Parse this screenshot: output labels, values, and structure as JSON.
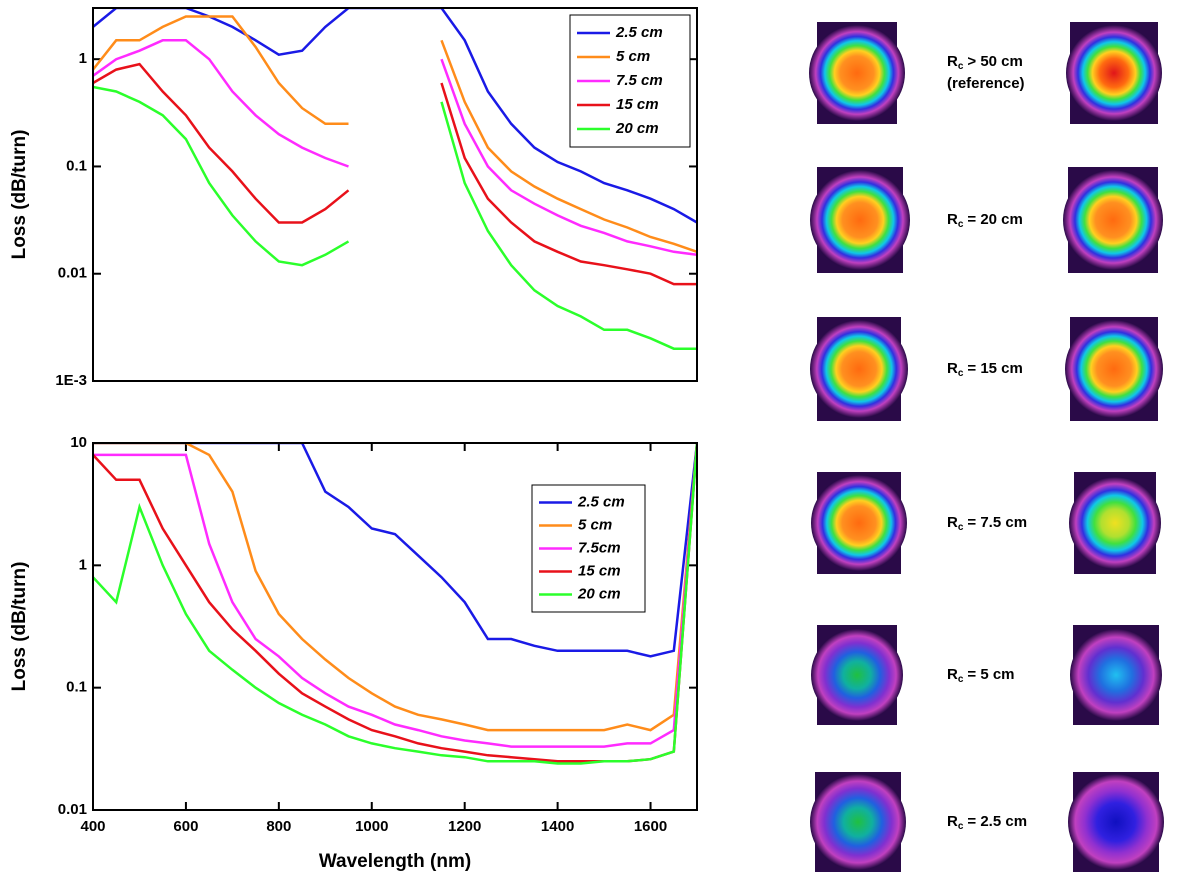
{
  "chart_data": [
    {
      "type": "line",
      "ylabel": "Loss (dB/turn)",
      "yscale": "log",
      "legend": "upper right",
      "x": [
        400,
        450,
        500,
        550,
        600,
        650,
        700,
        750,
        800,
        850,
        900,
        950,
        1000,
        1050,
        1100,
        1150,
        1200,
        1250,
        1300,
        1350,
        1400,
        1450,
        1500,
        1550,
        1600,
        1650,
        1700
      ],
      "xlim": [
        400,
        1700
      ],
      "ylim": [
        0.001,
        3
      ],
      "yticks": [
        {
          "value": 0.001,
          "label": "1E-3"
        },
        0.01,
        0.1,
        1
      ],
      "series": [
        {
          "name": "2.5 cm",
          "color": "#1a1ae6",
          "values": [
            2,
            3,
            3,
            3,
            3,
            2.5,
            2,
            1.5,
            1.1,
            1.2,
            2,
            3,
            3,
            3,
            3,
            3,
            1.5,
            0.5,
            0.25,
            0.15,
            0.11,
            0.09,
            0.07,
            0.06,
            0.05,
            0.04,
            0.03
          ]
        },
        {
          "name": "5 cm",
          "color": "#ff8c1a",
          "values": [
            0.8,
            1.5,
            1.5,
            2,
            2.5,
            2.5,
            2.5,
            1.3,
            0.6,
            0.35,
            0.25,
            0.25,
            null,
            null,
            null,
            1.5,
            0.4,
            0.15,
            0.09,
            0.065,
            0.05,
            0.04,
            0.032,
            0.027,
            0.022,
            0.019,
            0.016
          ]
        },
        {
          "name": "7.5 cm",
          "color": "#ff2bff",
          "values": [
            0.7,
            1,
            1.2,
            1.5,
            1.5,
            1,
            0.5,
            0.3,
            0.2,
            0.15,
            0.12,
            0.1,
            null,
            null,
            null,
            1,
            0.25,
            0.1,
            0.06,
            0.045,
            0.035,
            0.028,
            0.024,
            0.02,
            0.018,
            0.016,
            0.015
          ]
        },
        {
          "name": "15 cm",
          "color": "#e8111a",
          "values": [
            0.6,
            0.8,
            0.9,
            0.5,
            0.3,
            0.15,
            0.09,
            0.05,
            0.03,
            0.03,
            0.04,
            0.06,
            null,
            null,
            null,
            0.6,
            0.12,
            0.05,
            0.03,
            0.02,
            0.016,
            0.013,
            0.012,
            0.011,
            0.01,
            0.008,
            0.008
          ]
        },
        {
          "name": "20 cm",
          "color": "#2bff2b",
          "values": [
            0.55,
            0.5,
            0.4,
            0.3,
            0.18,
            0.07,
            0.035,
            0.02,
            0.013,
            0.012,
            0.015,
            0.02,
            null,
            null,
            null,
            0.4,
            0.07,
            0.025,
            0.012,
            0.007,
            0.005,
            0.004,
            0.003,
            0.003,
            0.0025,
            0.002,
            0.002
          ]
        }
      ]
    },
    {
      "type": "line",
      "xlabel": "Wavelength (nm)",
      "ylabel": "Loss (dB/turn)",
      "yscale": "log",
      "legend": "upper right",
      "x": [
        400,
        450,
        500,
        550,
        600,
        650,
        700,
        750,
        800,
        850,
        900,
        950,
        1000,
        1050,
        1100,
        1150,
        1200,
        1250,
        1300,
        1350,
        1400,
        1450,
        1500,
        1550,
        1600,
        1650,
        1700
      ],
      "xlim": [
        400,
        1700
      ],
      "ylim": [
        0.01,
        10
      ],
      "xticks": [
        400,
        600,
        800,
        1000,
        1200,
        1400,
        1600
      ],
      "yticks": [
        0.01,
        0.1,
        1,
        10
      ],
      "series": [
        {
          "name": "2.5 cm",
          "color": "#1a1ae6",
          "values": [
            10,
            10,
            10,
            10,
            10,
            10,
            10,
            10,
            10,
            10,
            4,
            3,
            2,
            1.8,
            1.2,
            0.8,
            0.5,
            0.25,
            0.25,
            0.22,
            0.2,
            0.2,
            0.2,
            0.2,
            0.18,
            0.2,
            10
          ]
        },
        {
          "name": "5 cm",
          "color": "#ff8c1a",
          "values": [
            10,
            10,
            10,
            10,
            10,
            8,
            4,
            0.9,
            0.4,
            0.25,
            0.17,
            0.12,
            0.09,
            0.07,
            0.06,
            0.055,
            0.05,
            0.045,
            0.045,
            0.045,
            0.045,
            0.045,
            0.045,
            0.05,
            0.045,
            0.06,
            10
          ]
        },
        {
          "name": "7.5cm",
          "color": "#ff2bff",
          "values": [
            8,
            8,
            8,
            8,
            8,
            1.5,
            0.5,
            0.25,
            0.18,
            0.12,
            0.09,
            0.07,
            0.06,
            0.05,
            0.045,
            0.04,
            0.037,
            0.035,
            0.033,
            0.033,
            0.033,
            0.033,
            0.033,
            0.035,
            0.035,
            0.045,
            10
          ]
        },
        {
          "name": "15 cm",
          "color": "#e8111a",
          "values": [
            8,
            5,
            5,
            2,
            1,
            0.5,
            0.3,
            0.2,
            0.13,
            0.09,
            0.07,
            0.055,
            0.045,
            0.04,
            0.035,
            0.032,
            0.03,
            0.028,
            0.027,
            0.026,
            0.025,
            0.025,
            0.025,
            0.025,
            0.026,
            0.03,
            10
          ]
        },
        {
          "name": "20 cm",
          "color": "#2bff2b",
          "values": [
            0.8,
            0.5,
            3,
            1,
            0.4,
            0.2,
            0.14,
            0.1,
            0.075,
            0.06,
            0.05,
            0.04,
            0.035,
            0.032,
            0.03,
            0.028,
            0.027,
            0.025,
            0.025,
            0.025,
            0.024,
            0.024,
            0.025,
            0.025,
            0.026,
            0.03,
            10
          ]
        }
      ]
    }
  ],
  "mode_profiles": [
    {
      "symbol": "R",
      "subscript": "c",
      "relation": "> 50 cm",
      "note": "(reference)"
    },
    {
      "symbol": "R",
      "subscript": "c",
      "relation": "= 20 cm"
    },
    {
      "symbol": "R",
      "subscript": "c",
      "relation": "= 15 cm"
    },
    {
      "symbol": "R",
      "subscript": "c",
      "relation": "= 7.5 cm"
    },
    {
      "symbol": "R",
      "subscript": "c",
      "relation": "= 5 cm"
    },
    {
      "symbol": "R",
      "subscript": "c",
      "relation": "= 2.5 cm"
    }
  ]
}
